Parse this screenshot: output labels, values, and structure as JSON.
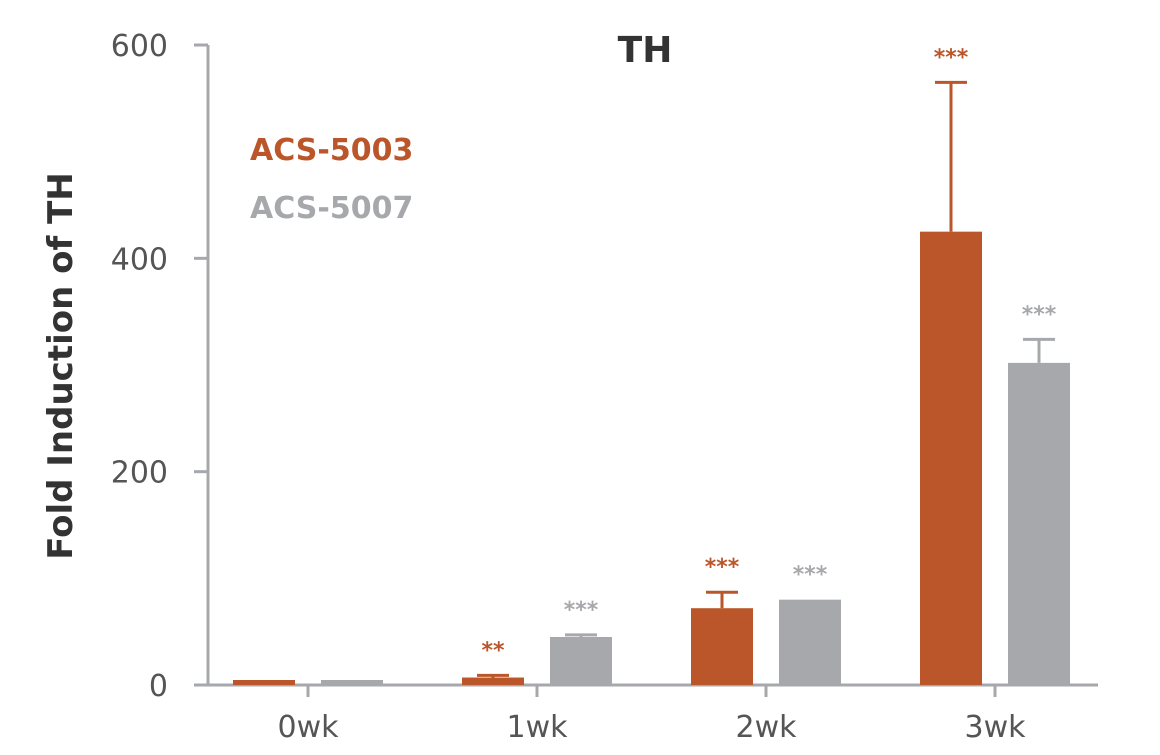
{
  "chart_data": {
    "type": "bar",
    "title": "TH",
    "ylabel": "Fold Induction of TH",
    "xlabel": "",
    "categories": [
      "0wk",
      "1wk",
      "2wk",
      "3wk"
    ],
    "ylim": [
      0,
      600
    ],
    "yticks": [
      0,
      200,
      400,
      600
    ],
    "legend_position": "top-left",
    "grid": false,
    "series": [
      {
        "name": "ACS-5003",
        "color": "#BA5629",
        "values": [
          1,
          7,
          72,
          425
        ],
        "error": [
          0,
          2,
          15,
          140
        ],
        "significance": [
          "",
          "**",
          "***",
          "***"
        ]
      },
      {
        "name": "ACS-5007",
        "color": "#A6A8AB",
        "values": [
          2,
          45,
          80,
          302
        ],
        "error": [
          0,
          2,
          0,
          22
        ],
        "significance": [
          "",
          "***",
          "***",
          "***"
        ]
      }
    ]
  }
}
